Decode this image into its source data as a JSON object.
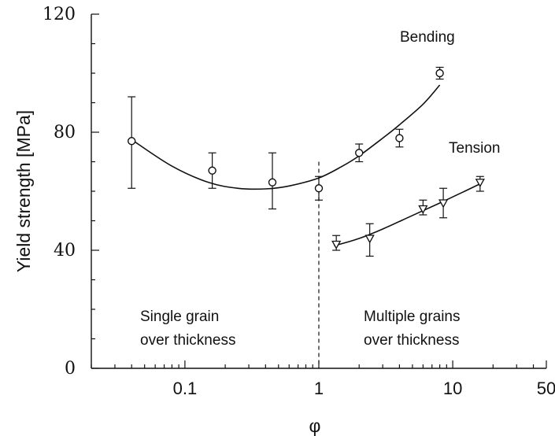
{
  "chart_data": {
    "type": "scatter",
    "xlabel": "φ",
    "ylabel": "Yield strength [MPa]",
    "x_scale": "log",
    "xlim": [
      0.02,
      50
    ],
    "ylim": [
      0,
      120
    ],
    "xticks": [
      {
        "value": 0.1,
        "label": "0.1"
      },
      {
        "value": 1,
        "label": "1"
      },
      {
        "value": 10,
        "label": "10"
      },
      {
        "value": 50,
        "label": "50"
      }
    ],
    "yticks": [
      {
        "value": 0,
        "label": "0"
      },
      {
        "value": 40,
        "label": "40"
      },
      {
        "value": 80,
        "label": "80"
      },
      {
        "value": 120,
        "label": "120"
      }
    ],
    "series": [
      {
        "name": "Bending",
        "marker": "circle",
        "points": [
          {
            "x": 0.04,
            "y": 77,
            "ylo": 61,
            "yhi": 92
          },
          {
            "x": 0.16,
            "y": 67,
            "ylo": 61,
            "yhi": 73
          },
          {
            "x": 0.45,
            "y": 63,
            "ylo": 54,
            "yhi": 73
          },
          {
            "x": 1.0,
            "y": 61,
            "ylo": 57,
            "yhi": 65
          },
          {
            "x": 2.0,
            "y": 73,
            "ylo": 70,
            "yhi": 76
          },
          {
            "x": 4.0,
            "y": 78,
            "ylo": 75,
            "yhi": 81
          },
          {
            "x": 8.0,
            "y": 100,
            "ylo": 98,
            "yhi": 102
          }
        ],
        "fit": [
          [
            0.04,
            77.5
          ],
          [
            0.08,
            68.5
          ],
          [
            0.15,
            63
          ],
          [
            0.25,
            61
          ],
          [
            0.4,
            60.8
          ],
          [
            0.6,
            61.8
          ],
          [
            1.0,
            64.5
          ],
          [
            1.5,
            68.5
          ],
          [
            2.0,
            72
          ],
          [
            3.0,
            78
          ],
          [
            4.0,
            82.5
          ],
          [
            6.0,
            89.5
          ],
          [
            8.0,
            96
          ]
        ]
      },
      {
        "name": "Tension",
        "marker": "triangle-down",
        "points": [
          {
            "x": 1.35,
            "y": 42,
            "ylo": 40,
            "yhi": 45
          },
          {
            "x": 2.4,
            "y": 44,
            "ylo": 38,
            "yhi": 49
          },
          {
            "x": 6.0,
            "y": 54,
            "ylo": 52,
            "yhi": 57
          },
          {
            "x": 8.5,
            "y": 56,
            "ylo": 51,
            "yhi": 61
          },
          {
            "x": 16.0,
            "y": 63,
            "ylo": 60,
            "yhi": 65
          }
        ],
        "fit": [
          [
            1.3,
            41.5
          ],
          [
            2.0,
            44
          ],
          [
            3.0,
            47.2
          ],
          [
            5.0,
            51.8
          ],
          [
            8.0,
            56
          ],
          [
            12.0,
            59.8
          ],
          [
            16.0,
            62.5
          ]
        ]
      }
    ],
    "divider_x": 1,
    "annotations": {
      "bending": "Bending",
      "tension": "Tension",
      "single_line1": "Single grain",
      "single_line2": "over thickness",
      "multiple_line1": "Multiple grains",
      "multiple_line2": "over thickness"
    }
  }
}
